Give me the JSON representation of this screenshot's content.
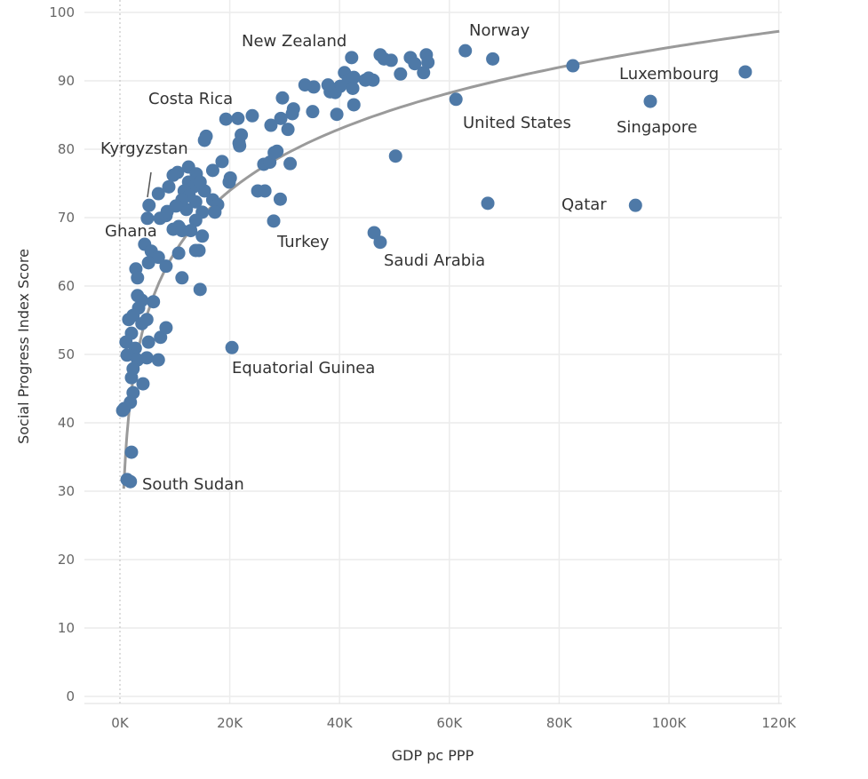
{
  "chart_data": {
    "type": "scatter",
    "title": "",
    "xlabel": "GDP pc PPP",
    "ylabel": "Social Progress Index Score",
    "xlim": [
      -5,
      121
    ],
    "ylim": [
      0,
      100
    ],
    "x_units": "thousands USD",
    "x_ticks": [
      0,
      20,
      40,
      60,
      80,
      100,
      120
    ],
    "x_tick_labels": [
      "0K",
      "20K",
      "40K",
      "60K",
      "80K",
      "100K",
      "120K"
    ],
    "y_ticks": [
      0,
      10,
      20,
      30,
      40,
      50,
      60,
      70,
      80,
      90,
      100
    ],
    "y_tick_labels": [
      "0",
      "10",
      "20",
      "30",
      "40",
      "50",
      "60",
      "70",
      "80",
      "90",
      "100"
    ],
    "grid": true,
    "colors": {
      "point": "#4e79a7",
      "trend": "#9a9a9a",
      "grid": "#ececec",
      "text": "#333333"
    },
    "trend_line": {
      "type": "logarithmic",
      "a": 35.0,
      "b": 13.0
    },
    "annotations": [
      {
        "text": "New Zealand",
        "x": 42.2,
        "y": 93.4
      },
      {
        "text": "Norway",
        "x": 62.9,
        "y": 94.4
      },
      {
        "text": "Costa Rica",
        "x": 15.7,
        "y": 81.9
      },
      {
        "text": "Kyrgyzstan",
        "x": 5.3,
        "y": 71.8
      },
      {
        "text": "Ghana",
        "x": 5.0,
        "y": 69.9
      },
      {
        "text": "Luxembourg",
        "x": 113.9,
        "y": 91.3
      },
      {
        "text": "United States",
        "x": 61.2,
        "y": 87.3
      },
      {
        "text": "Singapore",
        "x": 96.6,
        "y": 87.0
      },
      {
        "text": "Qatar",
        "x": 93.9,
        "y": 71.8
      },
      {
        "text": "Turkey",
        "x": 28.0,
        "y": 69.5
      },
      {
        "text": "Saudi Arabia",
        "x": 47.4,
        "y": 66.4
      },
      {
        "text": "Equatorial Guinea",
        "x": 20.4,
        "y": 51.0
      },
      {
        "text": "South Sudan",
        "x": 1.3,
        "y": 31.7
      }
    ],
    "points": [
      [
        62.9,
        94.4
      ],
      [
        67.9,
        93.2
      ],
      [
        47.4,
        93.8
      ],
      [
        48.1,
        93.2
      ],
      [
        49.4,
        93.0
      ],
      [
        52.9,
        93.4
      ],
      [
        55.8,
        93.8
      ],
      [
        56.1,
        92.7
      ],
      [
        53.7,
        92.5
      ],
      [
        51.1,
        91.0
      ],
      [
        55.3,
        91.2
      ],
      [
        42.2,
        93.4
      ],
      [
        82.5,
        92.2
      ],
      [
        113.9,
        91.3
      ],
      [
        61.2,
        87.3
      ],
      [
        96.6,
        87.0
      ],
      [
        93.9,
        71.8
      ],
      [
        46.3,
        67.8
      ],
      [
        47.4,
        66.4
      ],
      [
        67.0,
        72.1
      ],
      [
        50.2,
        79.0
      ],
      [
        28.0,
        69.5
      ],
      [
        20.4,
        51.0
      ],
      [
        1.3,
        31.7
      ],
      [
        1.9,
        31.4
      ],
      [
        2.1,
        35.7
      ],
      [
        45.3,
        90.4
      ],
      [
        46.1,
        90.1
      ],
      [
        44.7,
        90.1
      ],
      [
        40.1,
        89.2
      ],
      [
        40.9,
        91.2
      ],
      [
        41.6,
        90.1
      ],
      [
        42.6,
        90.5
      ],
      [
        42.4,
        88.9
      ],
      [
        39.2,
        88.3
      ],
      [
        38.3,
        88.4
      ],
      [
        37.9,
        89.4
      ],
      [
        39.5,
        85.1
      ],
      [
        42.6,
        86.5
      ],
      [
        35.3,
        89.1
      ],
      [
        33.7,
        89.4
      ],
      [
        35.1,
        85.5
      ],
      [
        29.6,
        87.5
      ],
      [
        31.6,
        85.9
      ],
      [
        31.4,
        85.2
      ],
      [
        29.3,
        84.5
      ],
      [
        30.6,
        82.9
      ],
      [
        27.5,
        83.5
      ],
      [
        24.1,
        84.9
      ],
      [
        21.5,
        84.5
      ],
      [
        19.3,
        84.4
      ],
      [
        15.7,
        81.9
      ],
      [
        22.1,
        82.1
      ],
      [
        21.7,
        80.9
      ],
      [
        21.8,
        80.5
      ],
      [
        31.0,
        77.9
      ],
      [
        26.2,
        77.8
      ],
      [
        27.3,
        78.1
      ],
      [
        28.6,
        79.7
      ],
      [
        28.1,
        79.5
      ],
      [
        18.6,
        78.2
      ],
      [
        20.1,
        75.8
      ],
      [
        19.9,
        75.2
      ],
      [
        16.9,
        76.9
      ],
      [
        25.1,
        73.9
      ],
      [
        26.4,
        73.9
      ],
      [
        29.2,
        72.7
      ],
      [
        15.4,
        81.3
      ],
      [
        12.5,
        77.4
      ],
      [
        13.9,
        76.4
      ],
      [
        10.5,
        76.6
      ],
      [
        9.7,
        76.2
      ],
      [
        7.0,
        73.5
      ],
      [
        5.3,
        71.8
      ],
      [
        5.0,
        69.9
      ],
      [
        7.3,
        69.9
      ],
      [
        8.4,
        70.3
      ],
      [
        9.7,
        68.3
      ],
      [
        10.7,
        68.7
      ],
      [
        12.1,
        71.2
      ],
      [
        13.8,
        72.3
      ],
      [
        15.4,
        73.9
      ],
      [
        16.9,
        72.6
      ],
      [
        17.8,
        71.9
      ],
      [
        17.3,
        70.8
      ],
      [
        15.0,
        70.8
      ],
      [
        13.8,
        69.6
      ],
      [
        12.9,
        68.1
      ],
      [
        11.3,
        68.1
      ],
      [
        12.5,
        75.2
      ],
      [
        13.4,
        74.5
      ],
      [
        14.6,
        75.2
      ],
      [
        11.7,
        73.9
      ],
      [
        12.6,
        73.2
      ],
      [
        8.9,
        74.5
      ],
      [
        11.3,
        72.6
      ],
      [
        10.2,
        71.7
      ],
      [
        8.6,
        70.9
      ],
      [
        4.5,
        66.1
      ],
      [
        5.7,
        65.1
      ],
      [
        7.0,
        64.2
      ],
      [
        5.2,
        63.4
      ],
      [
        8.4,
        62.9
      ],
      [
        10.7,
        64.8
      ],
      [
        14.4,
        65.2
      ],
      [
        15.0,
        67.3
      ],
      [
        13.8,
        65.2
      ],
      [
        11.3,
        61.2
      ],
      [
        14.6,
        59.5
      ],
      [
        2.9,
        62.5
      ],
      [
        3.2,
        61.2
      ],
      [
        3.2,
        58.6
      ],
      [
        4.0,
        57.9
      ],
      [
        6.1,
        57.7
      ],
      [
        1.6,
        55.1
      ],
      [
        2.4,
        55.7
      ],
      [
        3.4,
        56.8
      ],
      [
        2.1,
        53.1
      ],
      [
        4.0,
        54.5
      ],
      [
        4.9,
        55.1
      ],
      [
        1.1,
        51.8
      ],
      [
        2.8,
        50.9
      ],
      [
        5.2,
        51.8
      ],
      [
        7.4,
        52.5
      ],
      [
        8.4,
        53.9
      ],
      [
        1.3,
        49.9
      ],
      [
        3.2,
        49.2
      ],
      [
        4.9,
        49.5
      ],
      [
        7.0,
        49.2
      ],
      [
        2.4,
        47.9
      ],
      [
        2.1,
        46.6
      ],
      [
        4.2,
        45.7
      ],
      [
        2.4,
        44.4
      ],
      [
        1.9,
        43.0
      ],
      [
        0.8,
        42.1
      ],
      [
        0.5,
        41.8
      ]
    ]
  }
}
